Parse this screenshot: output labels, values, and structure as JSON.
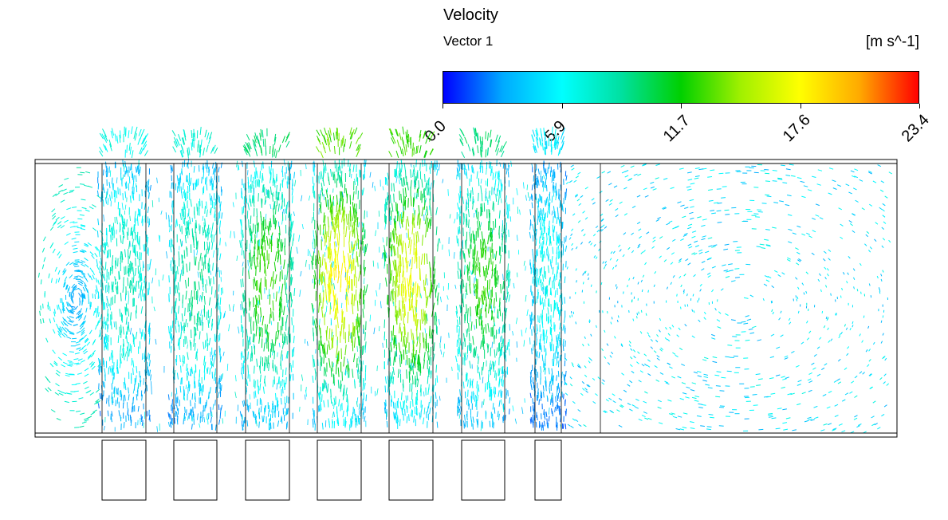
{
  "legend": {
    "title": "Velocity",
    "subtitle": "Vector 1",
    "unit": "[m s^-1]",
    "ticks": [
      "0.0",
      "5.9",
      "11.7",
      "17.6",
      "23.4"
    ],
    "colormap": [
      "#0000ff",
      "#00aaff",
      "#00ffff",
      "#00e0a0",
      "#00d000",
      "#a0f000",
      "#ffff00",
      "#ffaa00",
      "#ff0000"
    ]
  },
  "chart_data": {
    "type": "vector-field",
    "variable": "Velocity",
    "series_name": "Vector 1",
    "unit": "[m s^-1]",
    "range": [
      0.0,
      23.4
    ],
    "tick_values": [
      0.0,
      5.9,
      11.7,
      17.6,
      23.4
    ],
    "jet_columns": [
      {
        "peak_velocity": 8.0
      },
      {
        "peak_velocity": 9.0
      },
      {
        "peak_velocity": 12.5
      },
      {
        "peak_velocity": 17.5
      },
      {
        "peak_velocity": 16.5
      },
      {
        "peak_velocity": 12.0
      },
      {
        "peak_velocity": 6.0
      }
    ]
  }
}
